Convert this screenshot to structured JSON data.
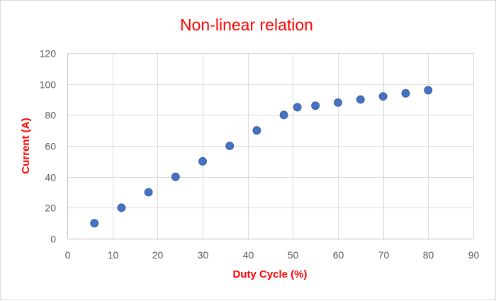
{
  "chart_data": {
    "type": "scatter",
    "title": "Non-linear relation",
    "xlabel": "Duty Cycle (%)",
    "ylabel": "Current (A)",
    "xlim": [
      0,
      90
    ],
    "ylim": [
      0,
      120
    ],
    "x_ticks": [
      0,
      10,
      20,
      30,
      40,
      50,
      60,
      70,
      80,
      90
    ],
    "y_ticks": [
      0,
      20,
      40,
      60,
      80,
      100,
      120
    ],
    "grid": true,
    "legend": "none",
    "series": [
      {
        "color": "#4472c4",
        "x": [
          6,
          12,
          18,
          24,
          30,
          36,
          42,
          48,
          51,
          55,
          60,
          65,
          70,
          75,
          80
        ],
        "y": [
          10,
          20,
          30,
          40,
          50,
          60,
          70,
          80,
          85,
          86,
          88,
          90,
          92,
          94,
          96
        ]
      }
    ],
    "colors": {
      "title": "#ff0000",
      "axis_title": "#ff0000",
      "grid": "#d9d9d9",
      "tick_label": "#595959"
    }
  }
}
